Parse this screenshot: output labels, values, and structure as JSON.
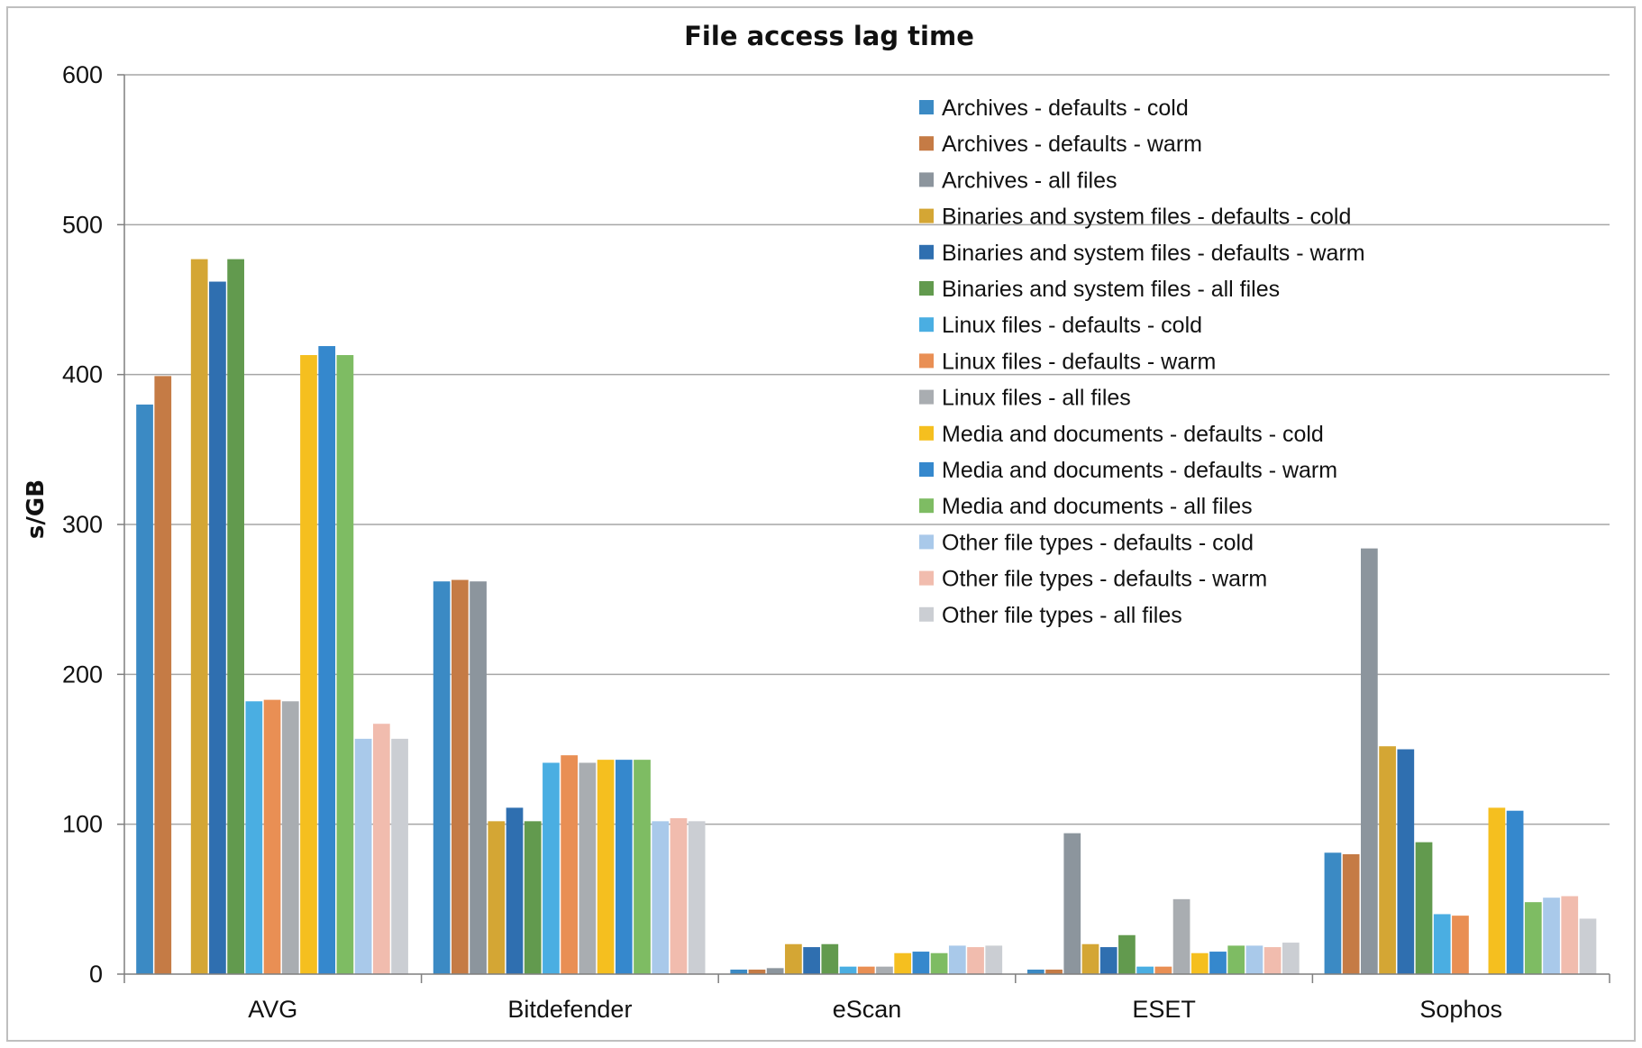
{
  "chart_data": {
    "type": "bar",
    "title": "File access lag time",
    "xlabel": "",
    "ylabel": "s/GB",
    "ylim": [
      0,
      600
    ],
    "yticks": [
      0,
      100,
      200,
      300,
      400,
      500,
      600
    ],
    "grid": true,
    "legend_position": "top-right",
    "categories": [
      "AVG",
      "Bitdefender",
      "eScan",
      "ESET",
      "Sophos"
    ],
    "series": [
      {
        "name": "Archives - defaults - cold",
        "color": "#3b8ac4",
        "values": [
          380,
          262,
          3,
          3,
          81
        ]
      },
      {
        "name": "Archives - defaults - warm",
        "color": "#c57b45",
        "values": [
          399,
          263,
          3,
          3,
          80
        ]
      },
      {
        "name": "Archives - all files",
        "color": "#8c959d",
        "values": [
          null,
          262,
          4,
          94,
          284
        ]
      },
      {
        "name": "Binaries and system files - defaults - cold",
        "color": "#d4a634",
        "values": [
          477,
          102,
          20,
          20,
          152
        ]
      },
      {
        "name": "Binaries and system files - defaults - warm",
        "color": "#2f6fb0",
        "values": [
          462,
          111,
          18,
          18,
          150
        ]
      },
      {
        "name": "Binaries and system files - all files",
        "color": "#629a4e",
        "values": [
          477,
          102,
          20,
          26,
          88
        ]
      },
      {
        "name": "Linux files - defaults - cold",
        "color": "#4aaee2",
        "values": [
          182,
          141,
          5,
          5,
          40
        ]
      },
      {
        "name": "Linux files - defaults - warm",
        "color": "#e98f54",
        "values": [
          183,
          146,
          5,
          5,
          39
        ]
      },
      {
        "name": "Linux files - all files",
        "color": "#a9adb1",
        "values": [
          182,
          141,
          5,
          50,
          null
        ]
      },
      {
        "name": "Media and documents - defaults - cold",
        "color": "#f5bf1f",
        "values": [
          413,
          143,
          14,
          14,
          111
        ]
      },
      {
        "name": "Media and documents - defaults - warm",
        "color": "#3588cd",
        "values": [
          419,
          143,
          15,
          15,
          109
        ]
      },
      {
        "name": "Media and documents - all files",
        "color": "#7ebc63",
        "values": [
          413,
          143,
          14,
          19,
          48
        ]
      },
      {
        "name": "Other file types - defaults - cold",
        "color": "#a9c9ea",
        "values": [
          157,
          102,
          19,
          19,
          51
        ]
      },
      {
        "name": "Other file types - defaults - warm",
        "color": "#f1bcae",
        "values": [
          167,
          104,
          18,
          18,
          52
        ]
      },
      {
        "name": "Other file types - all files",
        "color": "#cbced3",
        "values": [
          157,
          102,
          19,
          21,
          37
        ]
      }
    ]
  }
}
